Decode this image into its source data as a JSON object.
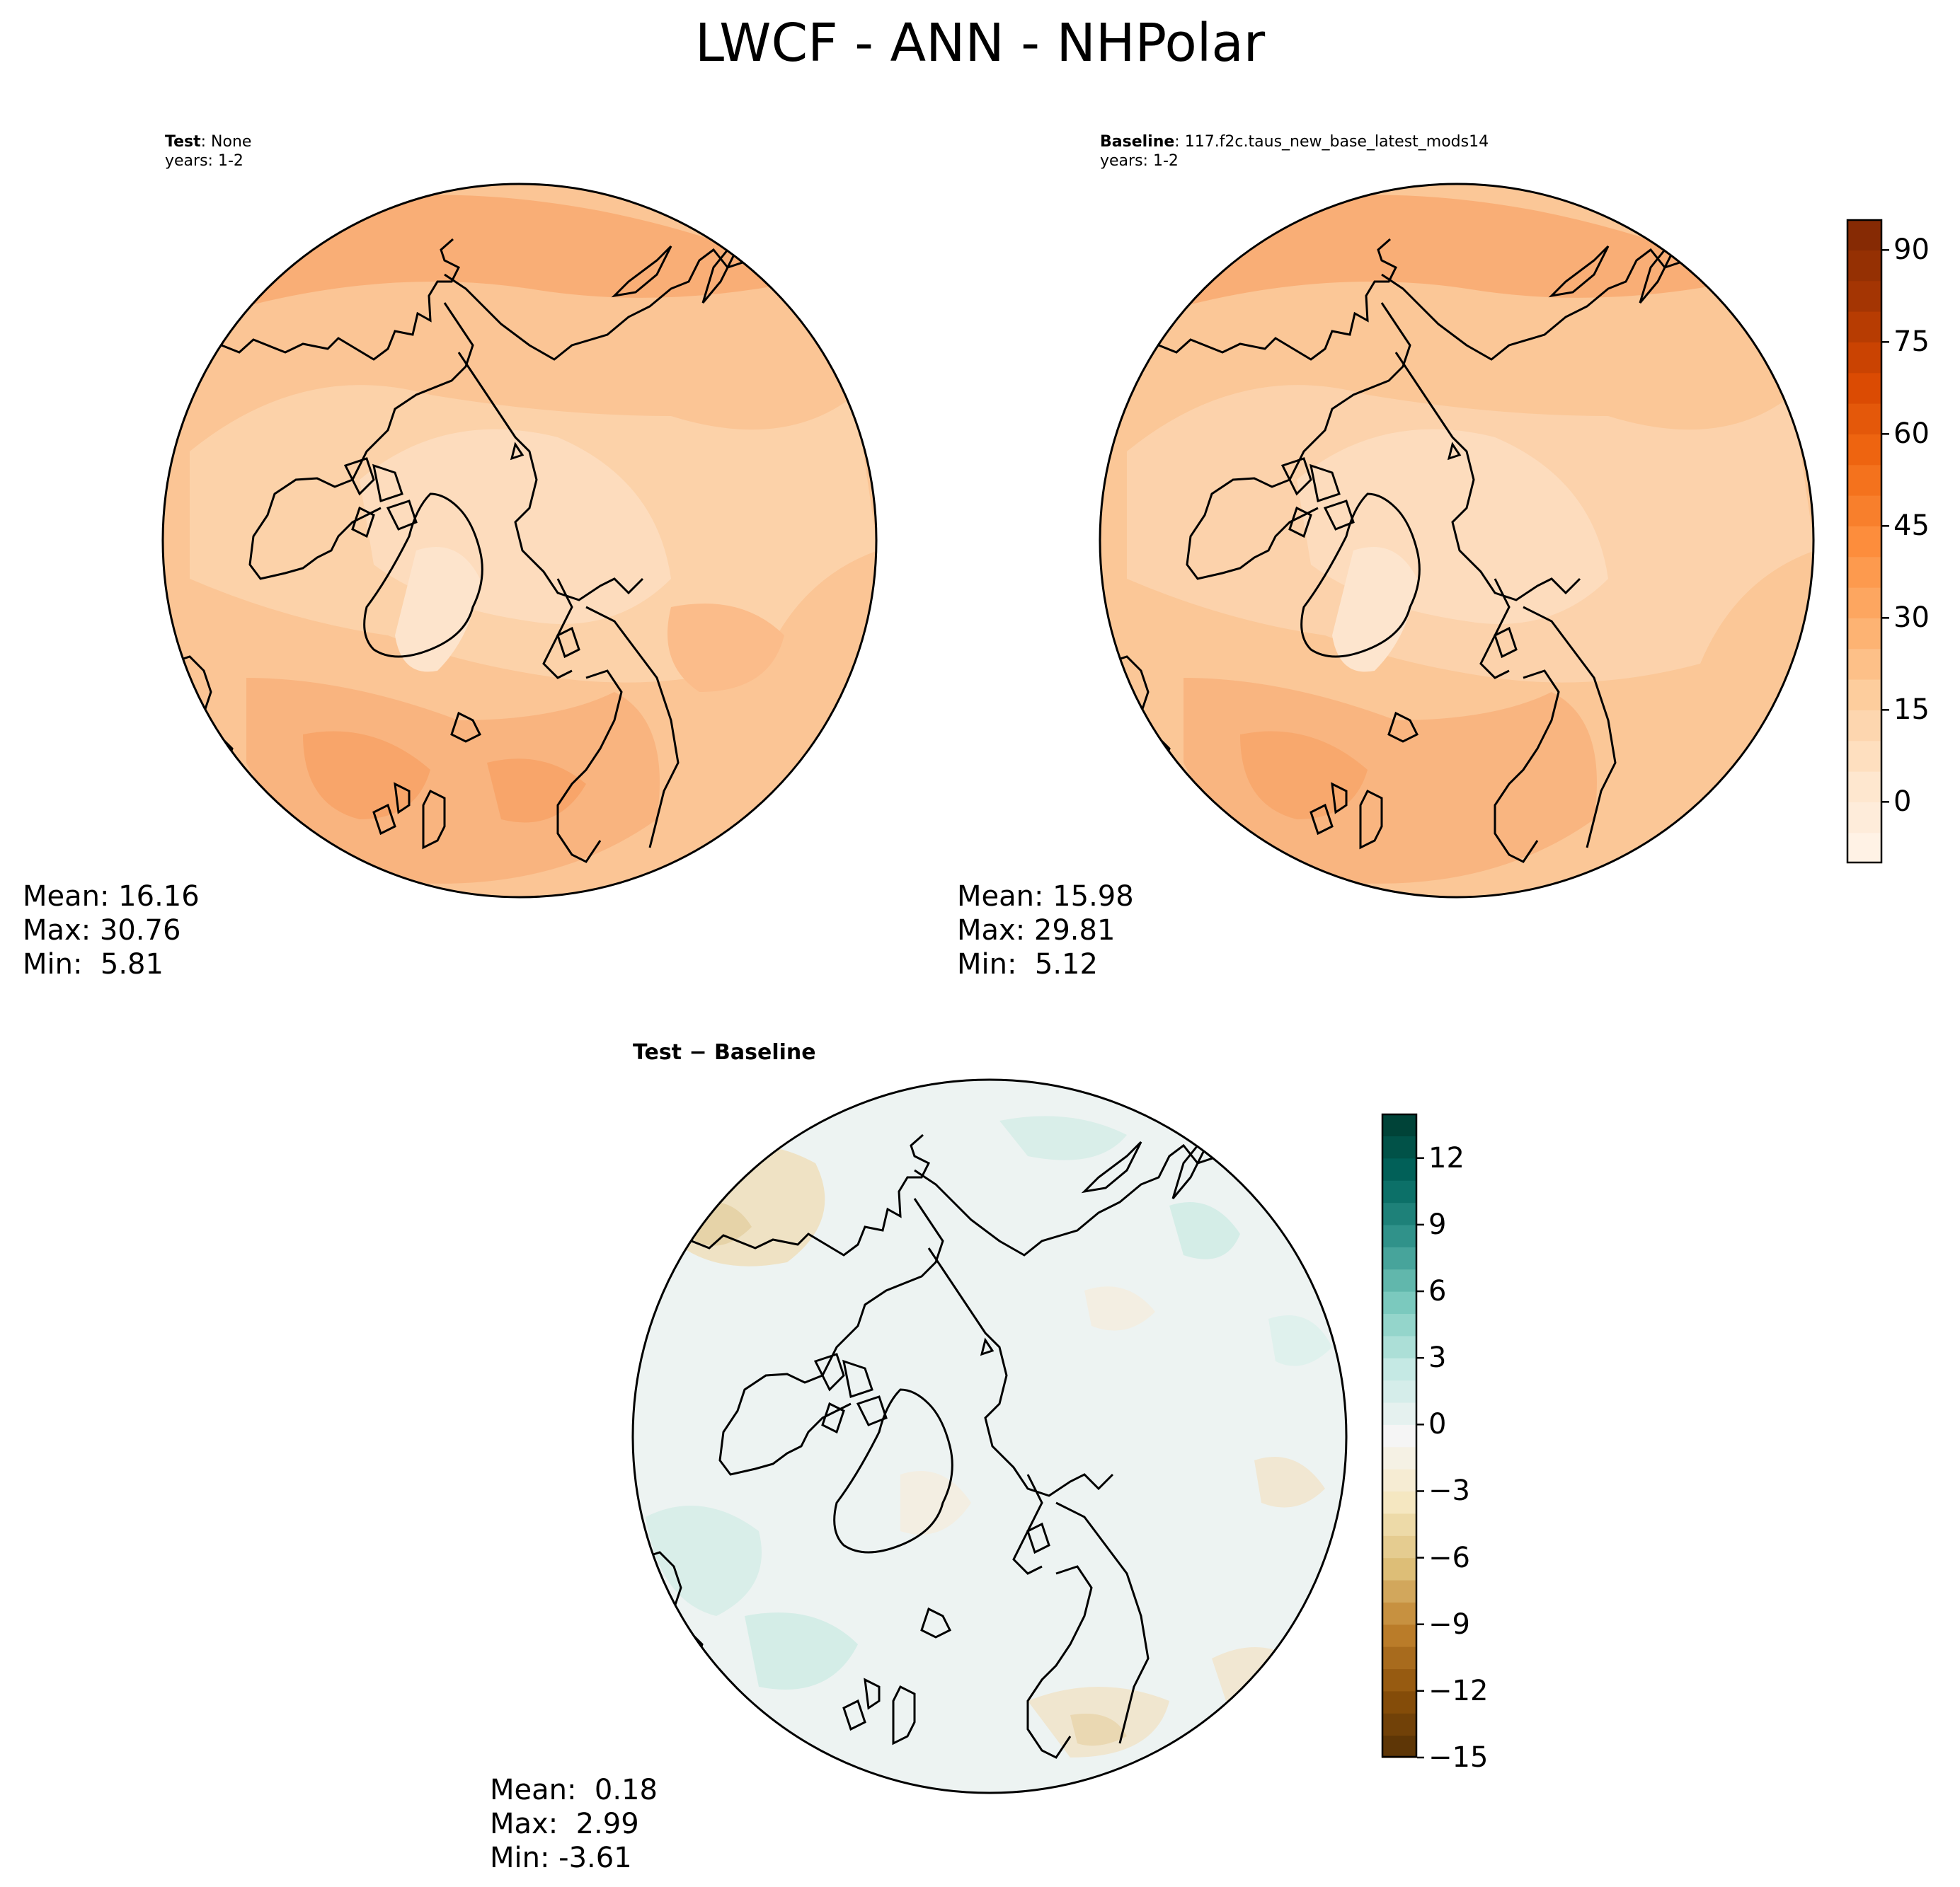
{
  "figure": {
    "title": "LWCF - ANN - NHPolar"
  },
  "panels": [
    {
      "id": "test",
      "label_bold": "Test",
      "label_rest": ": None",
      "years": "years: 1-2",
      "stats": {
        "mean": "Mean: 16.16",
        "max": "Max: 30.76",
        "min": "Min:  5.81"
      }
    },
    {
      "id": "baseline",
      "label_bold": "Baseline",
      "label_rest": ": 117.f2c.taus_new_base_latest_mods14",
      "years": "years: 1-2",
      "stats": {
        "mean": "Mean: 15.98",
        "max": "Max: 29.81",
        "min": "Min:  5.12"
      }
    },
    {
      "id": "diff",
      "label": "Test − Baseline",
      "stats": {
        "mean": "Mean:  0.18",
        "max": "Max:  2.99",
        "min": "Min: -3.61"
      }
    }
  ],
  "colorbars": {
    "main": {
      "range": [
        -10,
        95
      ],
      "ticks": [
        "90",
        "75",
        "60",
        "45",
        "30",
        "15",
        "0"
      ],
      "tick_values": [
        90,
        75,
        60,
        45,
        30,
        15,
        0
      ],
      "colors": [
        "#fff5eb",
        "#fee6ce",
        "#fdd0a2",
        "#fdae6b",
        "#fd8d3c",
        "#f16913",
        "#d94801",
        "#a63603",
        "#7f2704"
      ]
    },
    "diff": {
      "range": [
        -15,
        14
      ],
      "ticks": [
        "12",
        "9",
        "6",
        "3",
        "0",
        "−3",
        "−6",
        "−9",
        "−12",
        "−15"
      ],
      "tick_values": [
        12,
        9,
        6,
        3,
        0,
        -3,
        -6,
        -9,
        -12,
        -15
      ],
      "colors": [
        "#543005",
        "#8c510a",
        "#bf812d",
        "#dfc27d",
        "#f6e8c3",
        "#f5f5f5",
        "#c7eae5",
        "#80cdc1",
        "#35978f",
        "#01665e",
        "#003c30"
      ]
    }
  },
  "map_colors": {
    "test_base": "#fbc595",
    "test_light": "#fddcbd",
    "test_dark": "#f9ab73",
    "diff_base": "#edf3f2",
    "diff_blue": "#d8efea",
    "diff_tan": "#f1e7d2",
    "coast": "#000000"
  }
}
